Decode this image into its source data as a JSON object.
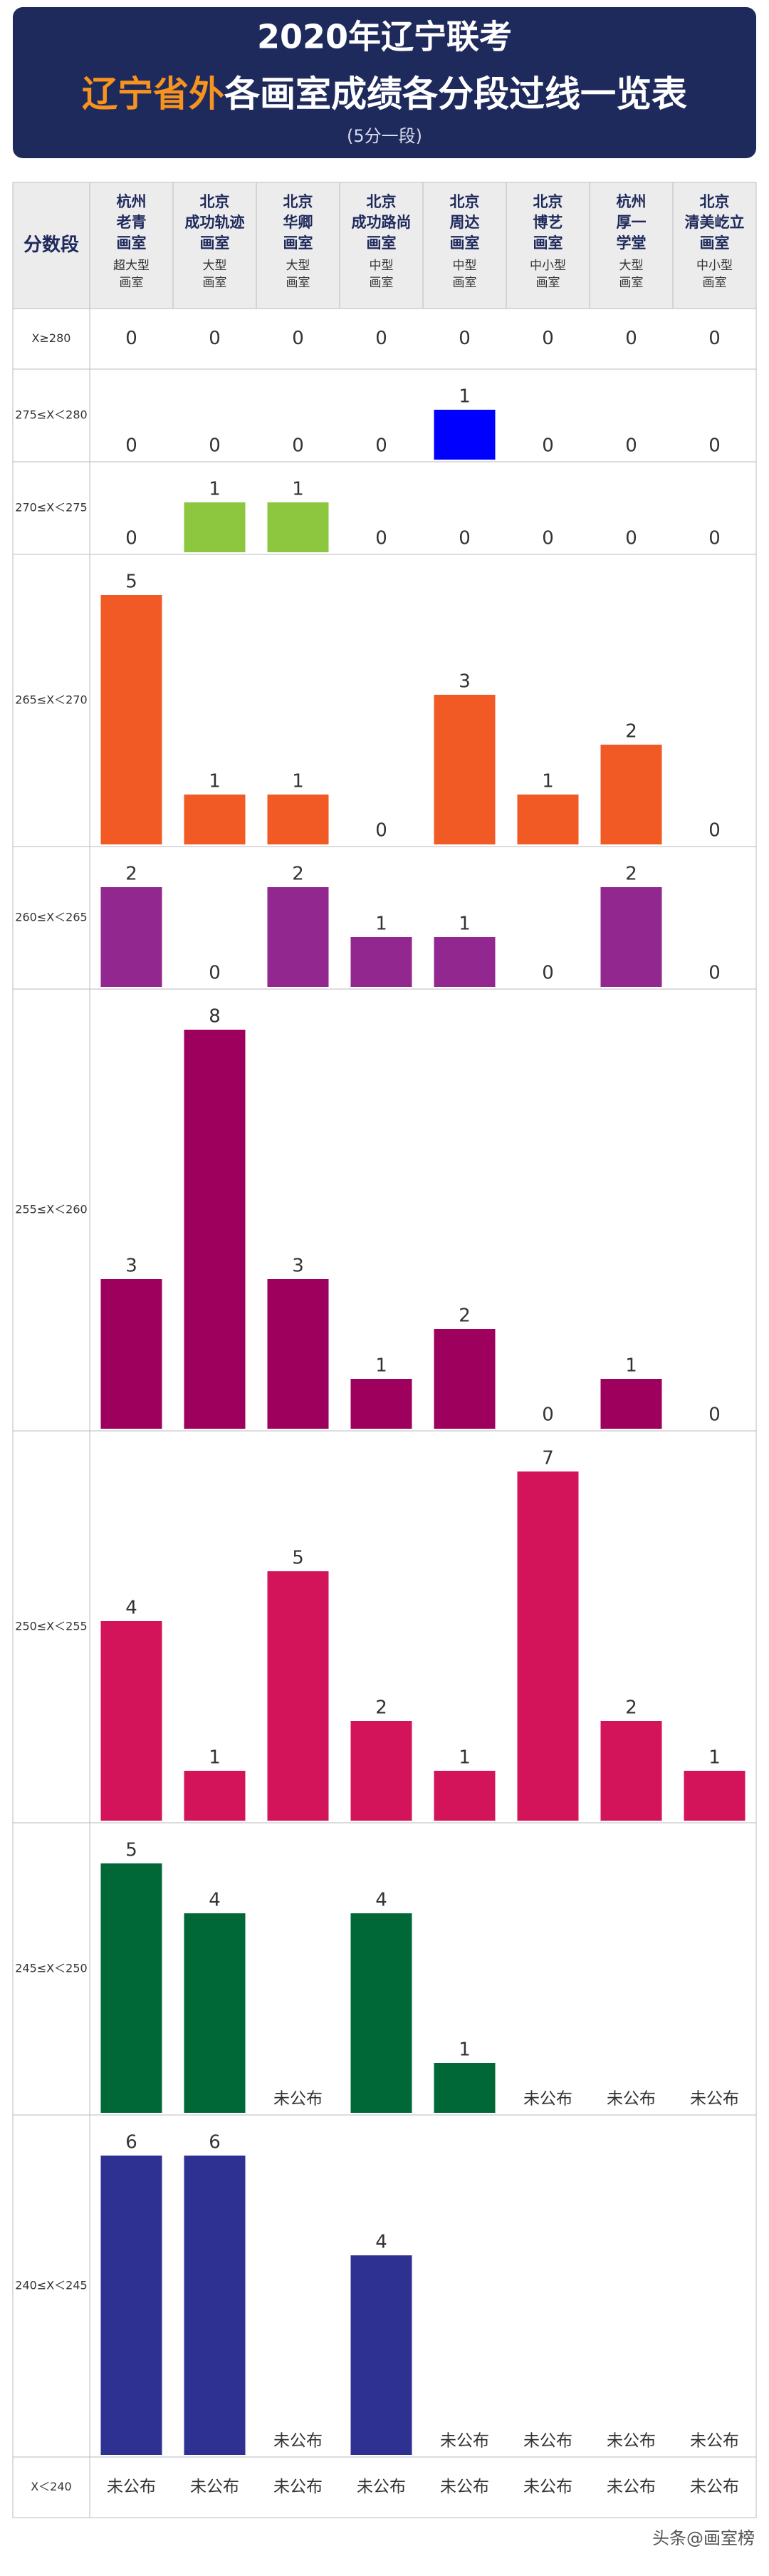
{
  "header": {
    "title": "2020年辽宁联考",
    "subtitle_highlight": "辽宁省外",
    "subtitle_rest": "各画室成绩各分段过线一览表",
    "note": "(5分一段)"
  },
  "table": {
    "corner": "分数段",
    "columns": [
      {
        "lines": [
          "杭州",
          "老青",
          "画室"
        ],
        "size": [
          "超大型",
          "画室"
        ]
      },
      {
        "lines": [
          "北京",
          "成功轨迹",
          "画室"
        ],
        "size": [
          "大型",
          "画室"
        ]
      },
      {
        "lines": [
          "北京",
          "华卿",
          "画室"
        ],
        "size": [
          "大型",
          "画室"
        ]
      },
      {
        "lines": [
          "北京",
          "成功路尚",
          "画室"
        ],
        "size": [
          "中型",
          "画室"
        ]
      },
      {
        "lines": [
          "北京",
          "周达",
          "画室"
        ],
        "size": [
          "中型",
          "画室"
        ]
      },
      {
        "lines": [
          "北京",
          "博艺",
          "画室"
        ],
        "size": [
          "中小型",
          "画室"
        ]
      },
      {
        "lines": [
          "杭州",
          "厚一",
          "学堂"
        ],
        "size": [
          "大型",
          "画室"
        ]
      },
      {
        "lines": [
          "北京",
          "清美屹立",
          "画室"
        ],
        "size": [
          "中小型",
          "画室"
        ]
      }
    ],
    "rows": [
      {
        "label": "X≥280",
        "color": "#0000ff",
        "values": [
          0,
          0,
          0,
          0,
          0,
          0,
          0,
          0
        ]
      },
      {
        "label": "275≤X＜280",
        "color": "#0000ff",
        "values": [
          0,
          0,
          0,
          0,
          1,
          0,
          0,
          0
        ]
      },
      {
        "label": "270≤X＜275",
        "color": "#8dc63f",
        "values": [
          0,
          1,
          1,
          0,
          0,
          0,
          0,
          0
        ]
      },
      {
        "label": "265≤X＜270",
        "color": "#f15a24",
        "values": [
          5,
          1,
          1,
          0,
          3,
          1,
          2,
          0
        ]
      },
      {
        "label": "260≤X＜265",
        "color": "#92278f",
        "values": [
          2,
          0,
          2,
          1,
          1,
          0,
          2,
          0
        ]
      },
      {
        "label": "255≤X＜260",
        "color": "#9e005d",
        "values": [
          3,
          8,
          3,
          1,
          2,
          0,
          1,
          0
        ]
      },
      {
        "label": "250≤X＜255",
        "color": "#d4145a",
        "values": [
          4,
          1,
          5,
          2,
          1,
          7,
          2,
          1
        ]
      },
      {
        "label": "245≤X＜250",
        "color": "#006837",
        "values": [
          5,
          4,
          "未公布",
          4,
          1,
          "未公布",
          "未公布",
          "未公布"
        ]
      },
      {
        "label": "240≤X＜245",
        "color": "#2e3192",
        "values": [
          6,
          6,
          "未公布",
          4,
          "未公布",
          "未公布",
          "未公布",
          "未公布"
        ]
      },
      {
        "label": "X＜240",
        "color": "#2e3192",
        "values": [
          "未公布",
          "未公布",
          "未公布",
          "未公布",
          "未公布",
          "未公布",
          "未公布",
          "未公布"
        ]
      }
    ]
  },
  "footer": {
    "watermark": "头条@画室榜"
  }
}
